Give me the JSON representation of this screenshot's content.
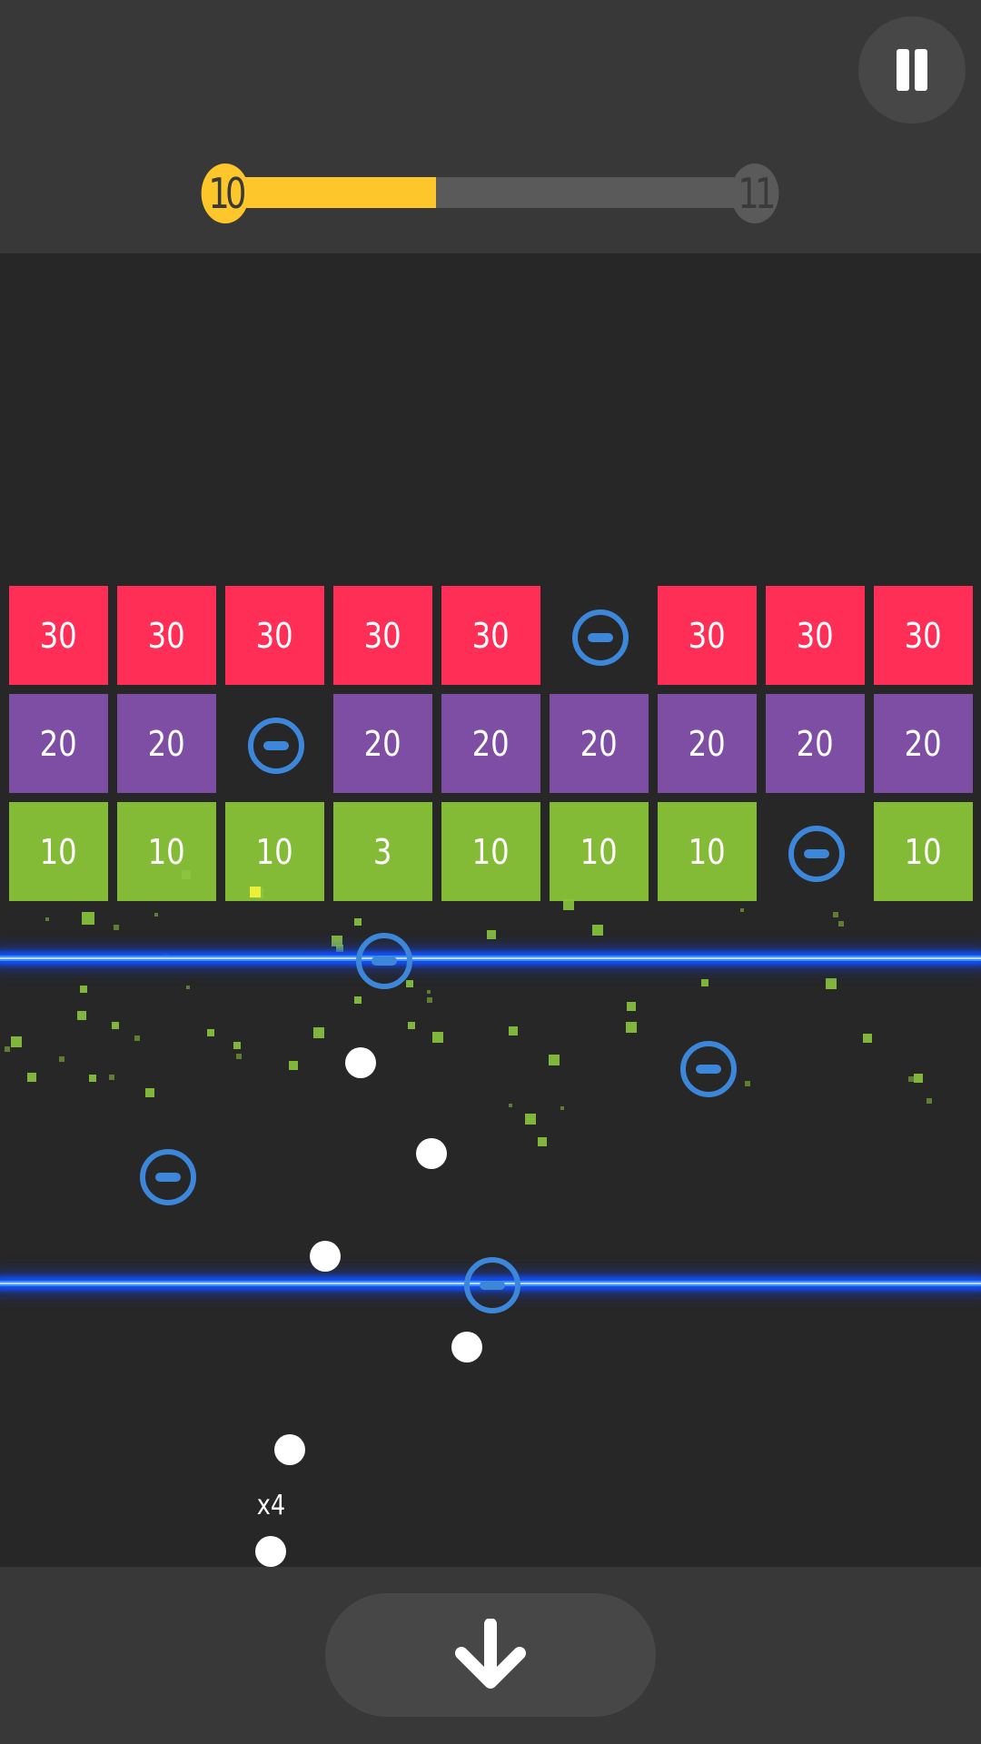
{
  "hud": {
    "pause_icon": "pause-icon",
    "level_current": "10",
    "level_next": "11",
    "level_progress": 0.4,
    "progress_color": "#fdc72b"
  },
  "colors": {
    "brick_30": "#ff2e57",
    "brick_20": "#7e4ea4",
    "brick_10": "#84bb36",
    "powerup": "#3d87da",
    "laser": "#1a5cff"
  },
  "bricks": {
    "row1": [
      "30",
      "30",
      "30",
      "30",
      "30",
      "",
      "30",
      "30",
      "30"
    ],
    "row2": [
      "20",
      "20",
      "",
      "20",
      "20",
      "20",
      "20",
      "20",
      "20"
    ],
    "row3": [
      "10",
      "10",
      "10",
      "3",
      "10",
      "10",
      "10",
      "",
      "10"
    ]
  },
  "powerup_icon": "minus-circle-icon",
  "balls": {
    "multiplier": "x4"
  },
  "controls": {
    "drop_icon": "arrow-down-icon"
  }
}
